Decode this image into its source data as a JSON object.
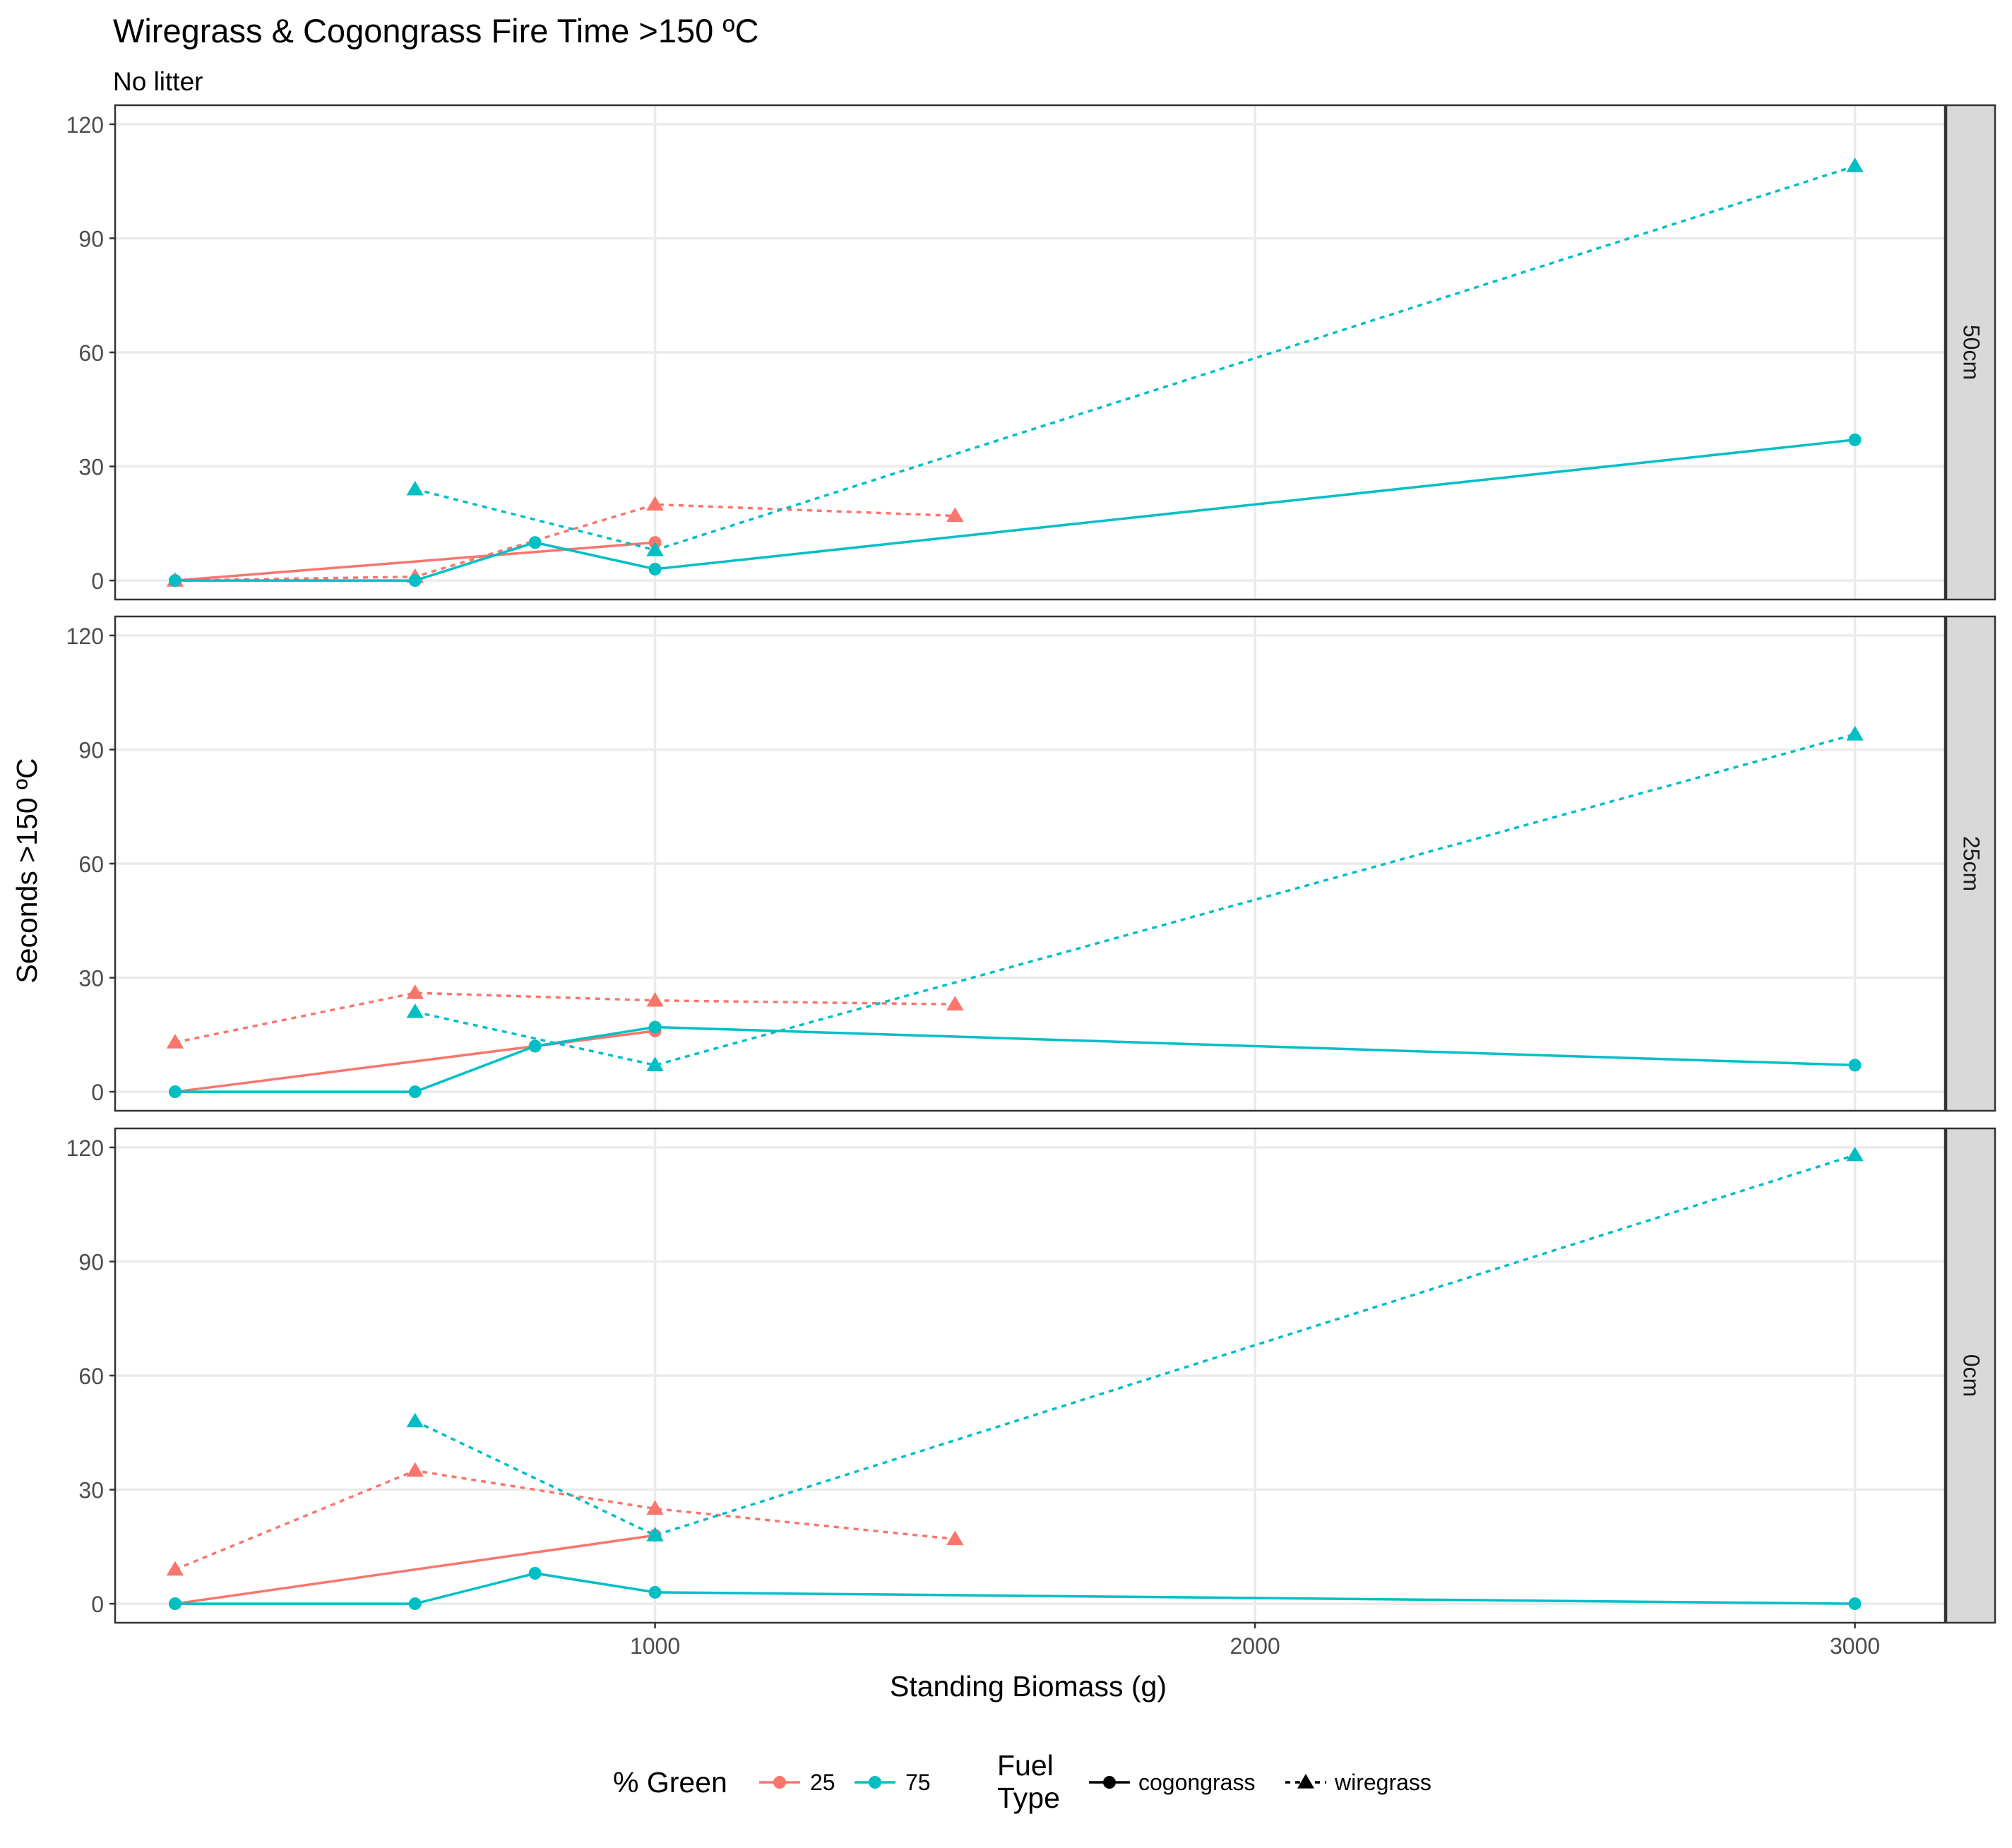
{
  "chart_data": {
    "type": "line",
    "title": "Wiregrass & Cogongrass Fire Time >150 ºC",
    "subtitle": "No litter",
    "xlabel": "Standing Biomass (g)",
    "ylabel": "Seconds >150 ºC",
    "xlim": [
      100,
      3150
    ],
    "ylim": [
      -5,
      125
    ],
    "x_ticks": [
      1000,
      2000,
      3000
    ],
    "y_ticks": [
      0,
      30,
      60,
      90,
      120
    ],
    "grid": true,
    "colors": {
      "25": "#F8766D",
      "75": "#00BFC4"
    },
    "legend": {
      "position": "bottom",
      "color_title": "% Green",
      "color_items": [
        "25",
        "75"
      ],
      "linetype_title": "Fuel\nType",
      "linetype_items": [
        "cogongrass",
        "wiregrass"
      ]
    },
    "panels": [
      {
        "label": "50cm",
        "series": [
          {
            "green": "25",
            "fuel": "cogongrass",
            "x": [
              200,
              1000
            ],
            "y": [
              0,
              10
            ]
          },
          {
            "green": "25",
            "fuel": "wiregrass",
            "x": [
              200,
              600,
              1000,
              1500
            ],
            "y": [
              0,
              1,
              20,
              17
            ]
          },
          {
            "green": "75",
            "fuel": "cogongrass",
            "x": [
              200,
              600,
              800,
              1000,
              3000
            ],
            "y": [
              0,
              0,
              10,
              3,
              37
            ]
          },
          {
            "green": "75",
            "fuel": "wiregrass",
            "x": [
              600,
              1000,
              3000
            ],
            "y": [
              24,
              8,
              109
            ]
          }
        ]
      },
      {
        "label": "25cm",
        "series": [
          {
            "green": "25",
            "fuel": "cogongrass",
            "x": [
              200,
              800,
              1000
            ],
            "y": [
              0,
              12,
              16
            ]
          },
          {
            "green": "25",
            "fuel": "wiregrass",
            "x": [
              200,
              600,
              1000,
              1500
            ],
            "y": [
              13,
              26,
              24,
              23
            ]
          },
          {
            "green": "75",
            "fuel": "cogongrass",
            "x": [
              200,
              600,
              800,
              1000,
              3000
            ],
            "y": [
              0,
              0,
              12,
              17,
              7
            ]
          },
          {
            "green": "75",
            "fuel": "wiregrass",
            "x": [
              600,
              1000,
              3000
            ],
            "y": [
              21,
              7,
              94
            ]
          }
        ]
      },
      {
        "label": "0cm",
        "series": [
          {
            "green": "25",
            "fuel": "cogongrass",
            "x": [
              200,
              1000
            ],
            "y": [
              0,
              18
            ]
          },
          {
            "green": "25",
            "fuel": "wiregrass",
            "x": [
              200,
              600,
              1000,
              1500
            ],
            "y": [
              9,
              35,
              25,
              17
            ]
          },
          {
            "green": "75",
            "fuel": "cogongrass",
            "x": [
              200,
              600,
              800,
              1000,
              3000
            ],
            "y": [
              0,
              0,
              8,
              3,
              0
            ]
          },
          {
            "green": "75",
            "fuel": "wiregrass",
            "x": [
              600,
              1000,
              3000
            ],
            "y": [
              48,
              18,
              118
            ]
          }
        ]
      }
    ]
  }
}
